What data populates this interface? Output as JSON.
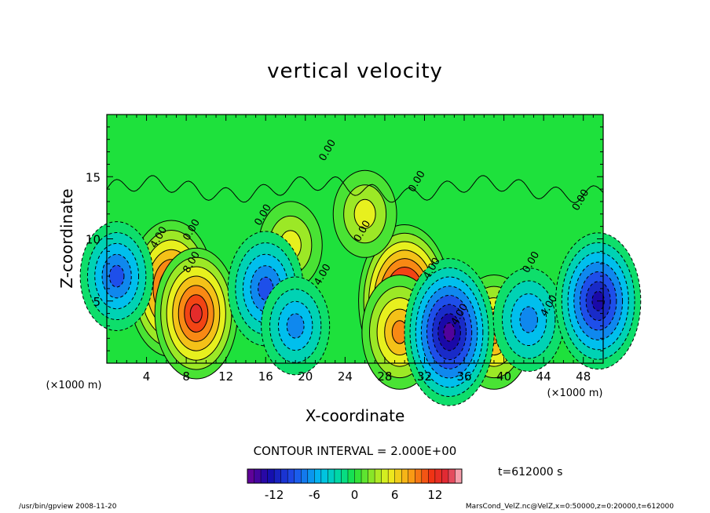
{
  "title": "vertical velocity",
  "contour_interval_label": "CONTOUR INTERVAL = 2.000E+00",
  "time_label": "t=612000 s",
  "footer_left": "/usr/bin/gpview 2008-11-20",
  "footer_right": "MarsCond_VelZ.nc@VelZ,x=0:50000,z=0:20000,t=612000",
  "chart_data": {
    "type": "heatmap",
    "title": "vertical velocity",
    "xlabel": "X-coordinate",
    "ylabel": "Z-coordinate",
    "x_unit_label": "(×1000 m)",
    "z_unit_label": "(×1000 m)",
    "xlim": [
      0,
      50
    ],
    "zlim": [
      0,
      20
    ],
    "x_ticks": [
      4,
      8,
      12,
      16,
      20,
      24,
      28,
      32,
      36,
      40,
      44,
      48
    ],
    "z_ticks": [
      5,
      10,
      15
    ],
    "contour_interval": 2.0,
    "contour_labels": [
      "4.00",
      "8.00",
      "0.00",
      "0.00",
      "0.00",
      "0.00",
      "0.00",
      "0.00",
      "4.00",
      "4.00",
      "4.00",
      "0.00",
      "4.00"
    ],
    "colorbar": {
      "min": -16,
      "max": 16,
      "step": 1,
      "ticks": [
        -12,
        -6,
        0,
        6,
        12
      ]
    },
    "features": [
      {
        "x": 6.5,
        "z": 6.0,
        "w": 14
      },
      {
        "x": 9.0,
        "z": 4.0,
        "w": 13
      },
      {
        "x": 30.0,
        "z": 5.0,
        "w": 17
      },
      {
        "x": 29.5,
        "z": 2.5,
        "w": 10
      },
      {
        "x": 39.0,
        "z": 2.5,
        "w": 10
      },
      {
        "x": 18.5,
        "z": 9.5,
        "w": 5
      },
      {
        "x": 26.0,
        "z": 12.0,
        "w": 5
      },
      {
        "x": 16.0,
        "z": 6.0,
        "w": -10
      },
      {
        "x": 19.0,
        "z": 3.0,
        "w": -7
      },
      {
        "x": 1.0,
        "z": 7.0,
        "w": -9
      },
      {
        "x": 34.5,
        "z": 2.5,
        "w": -16
      },
      {
        "x": 42.5,
        "z": 3.5,
        "w": -8
      },
      {
        "x": 49.5,
        "z": 5.0,
        "w": -14
      }
    ]
  }
}
